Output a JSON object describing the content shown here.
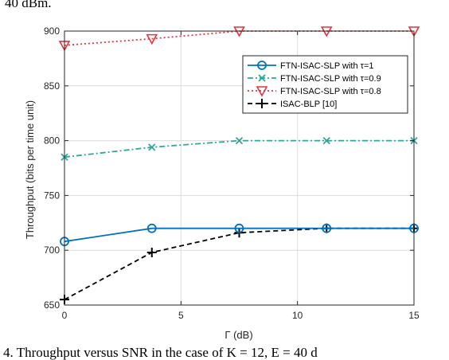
{
  "page_text": {
    "top_fragment": "40 dBm.",
    "caption": "4.  Throughput versus SNR in the case of K = 12, E = 40 d"
  },
  "chart_data": {
    "type": "line",
    "title": "",
    "xlabel": "Γ (dB)",
    "ylabel": "Throughput (bits per time unit)",
    "xlim": [
      0,
      15
    ],
    "ylim": [
      650,
      900
    ],
    "xticks": [
      0,
      5,
      10,
      15
    ],
    "yticks": [
      650,
      700,
      750,
      800,
      850,
      900
    ],
    "grid": true,
    "legend_position": "top-right",
    "x": [
      0,
      3.75,
      7.5,
      11.25,
      15
    ],
    "series": [
      {
        "name": "FTN-ISAC-SLP with τ=1",
        "values": [
          708,
          720,
          720,
          720,
          720
        ],
        "color": "#0072BD",
        "line_style": "solid",
        "marker": "circle"
      },
      {
        "name": "FTN-ISAC-SLP with τ=0.9",
        "values": [
          785,
          794,
          800,
          800,
          800
        ],
        "color": "#2BA89A",
        "line_style": "dashdot",
        "marker": "x"
      },
      {
        "name": "FTN-ISAC-SLP with τ=0.8",
        "values": [
          887,
          893,
          900,
          900,
          900
        ],
        "color": "#E5343A",
        "line_style": "dotted",
        "marker": "triangle-down"
      },
      {
        "name": "ISAC-BLP [10]",
        "values": [
          655,
          698,
          716,
          720,
          720
        ],
        "color": "#000000",
        "line_style": "dashed",
        "marker": "plus"
      }
    ]
  }
}
